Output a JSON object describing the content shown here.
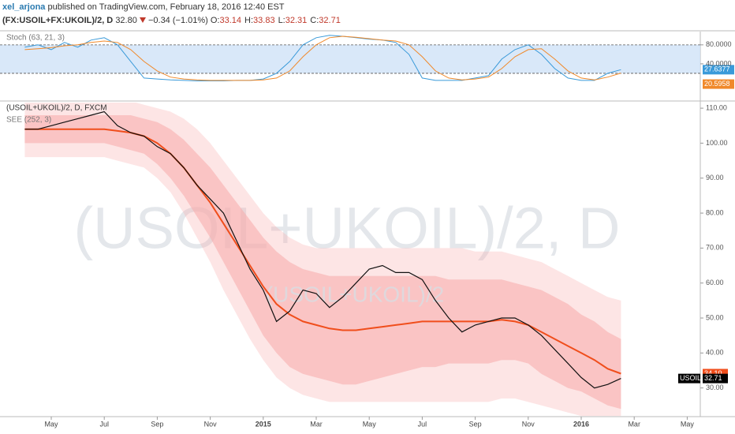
{
  "header": {
    "author": "xel_arjona",
    "published": "published on TradingView.com, February 18, 2016 12:40 EST",
    "symbol": "(FX:USOIL+FX:UKOIL)/2, D",
    "last": "32.80",
    "change": "−0.34 (−1.01%)",
    "ohlc": [
      {
        "key": "O:",
        "value": "33.14"
      },
      {
        "key": "H:",
        "value": "33.83"
      },
      {
        "key": "L:",
        "value": "32.31"
      },
      {
        "key": "C:",
        "value": "32.71"
      }
    ]
  },
  "chart_data": [
    {
      "type": "line",
      "title": "Stoch (63, 21, 3)",
      "ylim": [
        -35,
        108
      ],
      "yticks": [
        {
          "value": 80,
          "label": "80.0000"
        },
        {
          "value": 40,
          "label": "40.0000"
        }
      ],
      "levels": [
        80,
        20
      ],
      "series": [
        {
          "name": "%K",
          "color": "#3a9ad9",
          "last_label": "27.6377",
          "values": [
            75,
            80,
            70,
            85,
            75,
            90,
            95,
            80,
            45,
            10,
            8,
            6,
            5,
            4,
            4,
            4,
            5,
            5,
            8,
            20,
            45,
            80,
            95,
            100,
            98,
            95,
            92,
            90,
            85,
            60,
            10,
            5,
            5,
            5,
            10,
            15,
            50,
            70,
            80,
            60,
            30,
            10,
            5,
            5,
            20,
            27.6377,
            null,
            null,
            null,
            null,
            null,
            null
          ]
        },
        {
          "name": "%D",
          "color": "#f0892a",
          "last_label": "20.5958",
          "values": [
            70,
            72,
            74,
            78,
            80,
            85,
            88,
            85,
            70,
            45,
            25,
            12,
            8,
            6,
            5,
            5,
            5,
            5,
            6,
            10,
            25,
            55,
            80,
            95,
            98,
            96,
            93,
            90,
            88,
            80,
            55,
            25,
            10,
            6,
            8,
            12,
            30,
            55,
            70,
            72,
            50,
            25,
            10,
            6,
            12,
            20.5958,
            null,
            null,
            null,
            null,
            null,
            null
          ]
        }
      ]
    },
    {
      "type": "line",
      "title": "(USOIL+UKOIL)/2, D, FXCM",
      "watermark": "(USOIL+UKOIL)/2, D",
      "watermark2": "(USOIL+UKOIL)/2",
      "categories": [
        null,
        null,
        "May",
        null,
        null,
        null,
        "Jul",
        null,
        null,
        null,
        "Sep",
        null,
        null,
        null,
        "Nov",
        null,
        null,
        null,
        "2015",
        null,
        null,
        null,
        "Mar",
        null,
        null,
        null,
        "May",
        null,
        null,
        null,
        "Jul",
        null,
        null,
        null,
        "Sep",
        null,
        null,
        null,
        "Nov",
        null,
        null,
        null,
        "2016",
        null,
        null,
        null,
        "Mar",
        null,
        null,
        null,
        "May",
        null
      ],
      "ylim": [
        21.8,
        111.6
      ],
      "yticks": [
        {
          "value": 30,
          "label": "30.00"
        },
        {
          "value": 40,
          "label": "40.00"
        },
        {
          "value": 50,
          "label": "50.00"
        },
        {
          "value": 60,
          "label": "60.00"
        },
        {
          "value": 70,
          "label": "70.00"
        },
        {
          "value": 80,
          "label": "80.00"
        },
        {
          "value": 90,
          "label": "90.00"
        },
        {
          "value": 100,
          "label": "100.00"
        },
        {
          "value": 110,
          "label": "110.00"
        }
      ],
      "series": [
        {
          "name": "USOIL",
          "color": "#111111",
          "last_label": "32.71",
          "values": [
            104,
            104,
            105,
            106,
            107,
            108,
            109,
            105,
            103,
            102,
            99,
            97,
            93,
            88,
            84,
            80,
            72,
            64,
            58,
            49,
            52,
            58,
            57,
            53,
            56,
            60,
            64,
            65,
            63,
            63,
            61,
            55,
            50,
            46,
            48,
            49,
            50,
            50,
            48,
            45,
            41,
            37,
            33,
            30,
            31,
            32.71,
            null,
            null,
            null,
            null,
            null,
            null
          ]
        }
      ],
      "see": {
        "name": "SEE (252, 3)",
        "color": "#f04e1c",
        "band_color": "#f7a9a9",
        "last_label": "34.10",
        "values": [
          104,
          104,
          104,
          104,
          104,
          104,
          104,
          103.5,
          103,
          102,
          100,
          97,
          93,
          88,
          83,
          77,
          71,
          65,
          59,
          54,
          51,
          49,
          48,
          47,
          46.5,
          46.5,
          47,
          47.5,
          48,
          48.5,
          49,
          49,
          49,
          49,
          49,
          49,
          49.5,
          49,
          48,
          46,
          44,
          42,
          40,
          38,
          35.5,
          34.1,
          null,
          null,
          null,
          null,
          null,
          null
        ],
        "inner_upper": [
          108,
          108,
          108,
          108,
          108,
          108,
          108,
          108,
          108,
          107,
          106,
          104,
          101,
          97,
          93,
          88,
          83,
          78,
          73,
          69,
          66,
          64,
          63,
          62,
          62,
          62,
          62,
          62,
          62,
          62,
          62,
          62,
          61,
          61,
          61,
          61,
          61,
          60,
          59,
          58,
          56,
          54,
          51,
          49,
          46,
          44,
          null,
          null,
          null,
          null,
          null,
          null
        ],
        "inner_lower": [
          100,
          100,
          100,
          100,
          100,
          100,
          100,
          99,
          98,
          97,
          94,
          90,
          85,
          79,
          73,
          66,
          59,
          52,
          45,
          40,
          36,
          34,
          33,
          32,
          31,
          31,
          32,
          33,
          34,
          35,
          36,
          36,
          37,
          37,
          37,
          37,
          38,
          38,
          37,
          34,
          32,
          30,
          29,
          27,
          25,
          24,
          null,
          null,
          null,
          null,
          null,
          null
        ],
        "outer_upper": [
          112,
          112,
          112,
          112,
          112,
          112,
          112,
          112,
          112,
          111,
          110,
          109,
          107,
          104,
          100,
          95,
          90,
          85,
          80,
          76,
          73,
          71,
          70,
          70,
          70,
          70,
          70,
          70,
          70,
          70,
          70,
          70,
          70,
          70,
          69,
          69,
          69,
          68,
          67,
          66,
          64,
          62,
          60,
          58,
          56,
          55,
          null,
          null,
          null,
          null,
          null,
          null
        ],
        "outer_lower": [
          96,
          96,
          96,
          96,
          96,
          96,
          96,
          95,
          94,
          93,
          90,
          86,
          80,
          73,
          66,
          58,
          51,
          44,
          38,
          33,
          30,
          28,
          27,
          26,
          26,
          26,
          26,
          26,
          26,
          26,
          26,
          26,
          26,
          26,
          26,
          26,
          27,
          27,
          26,
          25,
          24,
          23,
          22,
          22,
          22,
          22,
          null,
          null,
          null,
          null,
          null,
          null
        ]
      }
    }
  ]
}
